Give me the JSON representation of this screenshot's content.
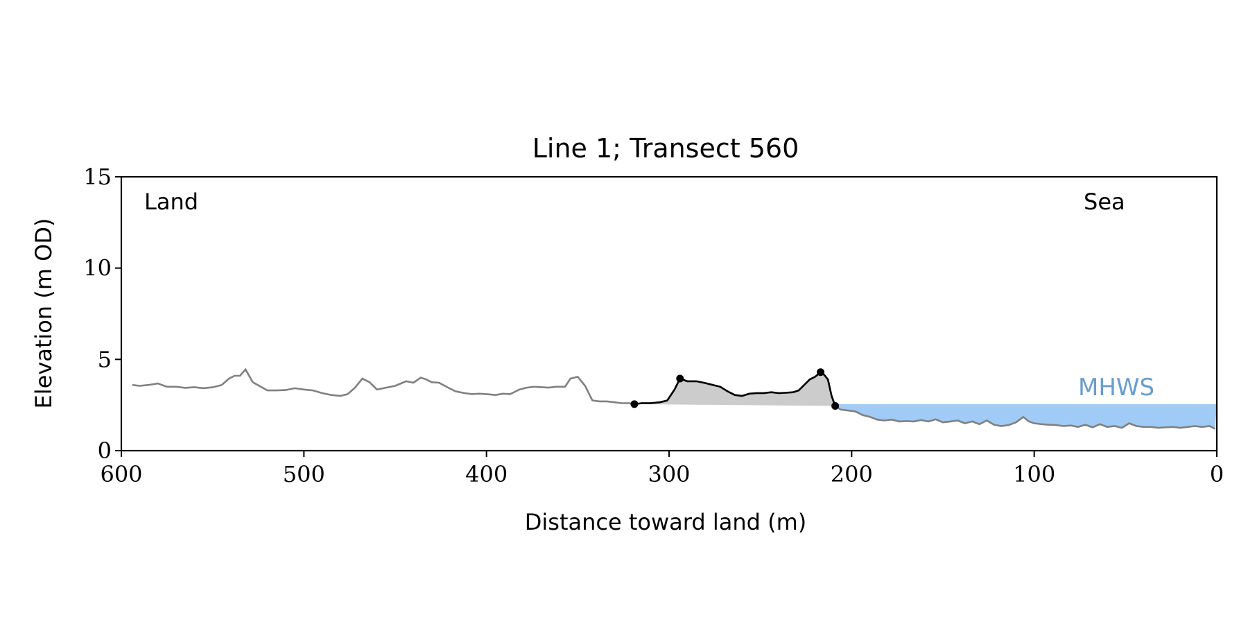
{
  "chart_data": {
    "type": "line",
    "title": "Line 1; Transect 560",
    "xlabel": "Distance toward land (m)",
    "ylabel": "Elevation (m OD)",
    "xlim": [
      600,
      0
    ],
    "ylim": [
      0,
      15
    ],
    "x_ticks": [
      600,
      500,
      400,
      300,
      200,
      100,
      0
    ],
    "y_ticks": [
      0,
      5,
      10,
      15
    ],
    "grid": false,
    "annotations": {
      "left_label": "Land",
      "right_label": "Sea",
      "mhws_label": "MHWS"
    },
    "mhws_level": 2.55,
    "colors": {
      "profile": "#808080",
      "dune": "#000000",
      "dune_fill": "#cccccc",
      "sea_fill": "#a0cbf7",
      "mhws_text": "#6a9ccc"
    },
    "profile": {
      "x": [
        594,
        590,
        585,
        580,
        575,
        570,
        565,
        560,
        555,
        550,
        545,
        541,
        538,
        535,
        532,
        528,
        520,
        515,
        510,
        505,
        500,
        495,
        490,
        485,
        480,
        476,
        472,
        468,
        464,
        460,
        455,
        450,
        444,
        440,
        436,
        433,
        430,
        426,
        421,
        417,
        412,
        408,
        404,
        400,
        395,
        391,
        387,
        382,
        378,
        374,
        370,
        366,
        362,
        357,
        354,
        350,
        346,
        342,
        338,
        334,
        330,
        326,
        322,
        319,
        315,
        310,
        305,
        301,
        297,
        294,
        290,
        285,
        280,
        276,
        272,
        268,
        264,
        260,
        256,
        252,
        248,
        244,
        240,
        236,
        232,
        229,
        226,
        223,
        220,
        217,
        215,
        213,
        211,
        209,
        206,
        202,
        198,
        194,
        190,
        186,
        182,
        178,
        174,
        170,
        166,
        162,
        158,
        154,
        150,
        146,
        142,
        138,
        134,
        130,
        126,
        122,
        118,
        114,
        110,
        106,
        103,
        100,
        96,
        92,
        88,
        84,
        80,
        76,
        72,
        68,
        64,
        60,
        56,
        52,
        48,
        44,
        40,
        36,
        32,
        28,
        24,
        20,
        16,
        12,
        8,
        4,
        1
      ],
      "y": [
        3.6,
        3.55,
        3.6,
        3.68,
        3.5,
        3.5,
        3.44,
        3.48,
        3.42,
        3.47,
        3.6,
        3.95,
        4.1,
        4.1,
        4.45,
        3.75,
        3.3,
        3.3,
        3.32,
        3.42,
        3.35,
        3.3,
        3.15,
        3.05,
        3.0,
        3.1,
        3.45,
        3.95,
        3.75,
        3.35,
        3.45,
        3.55,
        3.8,
        3.72,
        4.0,
        3.9,
        3.75,
        3.72,
        3.45,
        3.25,
        3.15,
        3.1,
        3.12,
        3.1,
        3.05,
        3.12,
        3.1,
        3.35,
        3.45,
        3.5,
        3.48,
        3.45,
        3.5,
        3.5,
        3.95,
        4.05,
        3.55,
        2.75,
        2.7,
        2.7,
        2.65,
        2.6,
        2.6,
        2.55,
        2.6,
        2.6,
        2.65,
        2.75,
        3.35,
        3.95,
        3.8,
        3.8,
        3.7,
        3.6,
        3.5,
        3.25,
        3.05,
        3.0,
        3.12,
        3.15,
        3.15,
        3.2,
        3.15,
        3.17,
        3.2,
        3.3,
        3.6,
        3.9,
        4.05,
        4.3,
        4.15,
        3.9,
        3.0,
        2.45,
        2.25,
        2.2,
        2.15,
        1.95,
        1.85,
        1.7,
        1.65,
        1.7,
        1.6,
        1.62,
        1.6,
        1.68,
        1.6,
        1.72,
        1.55,
        1.6,
        1.65,
        1.5,
        1.6,
        1.45,
        1.65,
        1.42,
        1.35,
        1.4,
        1.55,
        1.85,
        1.6,
        1.5,
        1.45,
        1.42,
        1.4,
        1.35,
        1.38,
        1.3,
        1.42,
        1.28,
        1.45,
        1.3,
        1.35,
        1.25,
        1.5,
        1.35,
        1.3,
        1.3,
        1.25,
        1.28,
        1.3,
        1.25,
        1.3,
        1.35,
        1.3,
        1.35,
        1.2
      ]
    },
    "dune": {
      "x": [
        319,
        315,
        310,
        305,
        301,
        297,
        294,
        290,
        285,
        280,
        276,
        272,
        268,
        264,
        260,
        256,
        252,
        248,
        244,
        240,
        236,
        232,
        229,
        226,
        223,
        220,
        217,
        215,
        213,
        211,
        209
      ],
      "y": [
        2.55,
        2.6,
        2.6,
        2.65,
        2.75,
        3.35,
        3.95,
        3.8,
        3.8,
        3.7,
        3.6,
        3.5,
        3.25,
        3.05,
        3.0,
        3.12,
        3.15,
        3.15,
        3.2,
        3.15,
        3.17,
        3.2,
        3.3,
        3.6,
        3.9,
        4.05,
        4.3,
        4.15,
        3.9,
        3.0,
        2.45
      ],
      "markers": [
        {
          "x": 319,
          "y": 2.55
        },
        {
          "x": 294,
          "y": 3.95
        },
        {
          "x": 217,
          "y": 4.3
        },
        {
          "x": 209,
          "y": 2.45
        }
      ]
    }
  }
}
